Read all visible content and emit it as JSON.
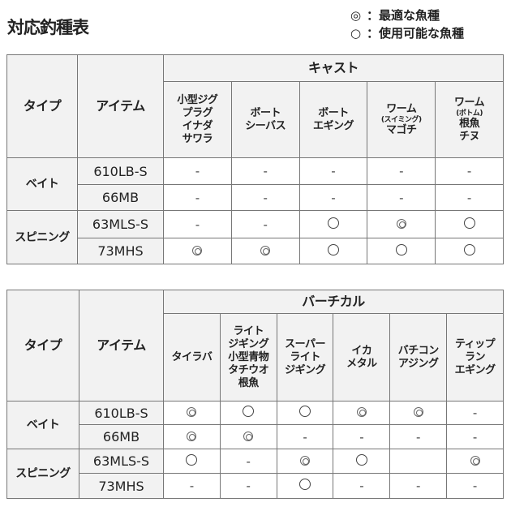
{
  "title": "対応釣種表",
  "legend": [
    {
      "symbol": "◎",
      "label": "：最適な魚種"
    },
    {
      "symbol": "○",
      "label": "：使用可能な魚種"
    }
  ],
  "tables": [
    {
      "type_header": "タイプ",
      "item_header": "アイテム",
      "group": "キャスト",
      "columns": [
        {
          "lines": [
            "小型ジグ",
            "プラグ",
            "イナダ",
            "サワラ"
          ]
        },
        {
          "lines": [
            "ボート",
            "シーバス"
          ]
        },
        {
          "lines": [
            "ボート",
            "エギング"
          ]
        },
        {
          "lines": [
            "ワーム"
          ],
          "small": "(スイミング)",
          "after": [
            "マゴチ"
          ]
        },
        {
          "lines": [
            "ワーム"
          ],
          "small": "(ボトム)",
          "after": [
            "根魚",
            "チヌ"
          ]
        }
      ],
      "rows": [
        {
          "type": "ベイト",
          "item": "610LB-S",
          "values": [
            "-",
            "-",
            "-",
            "-",
            "-"
          ]
        },
        {
          "type": "ベイト",
          "item": "66MB",
          "values": [
            "-",
            "-",
            "-",
            "-",
            "-"
          ]
        },
        {
          "type": "スピニング",
          "item": "63MLS-S",
          "values": [
            "-",
            "-",
            "○",
            "◎",
            "○"
          ]
        },
        {
          "type": "スピニング",
          "item": "73MHS",
          "values": [
            "◎",
            "◎",
            "○",
            "○",
            "○"
          ]
        }
      ]
    },
    {
      "type_header": "タイプ",
      "item_header": "アイテム",
      "group": "バーチカル",
      "columns": [
        {
          "lines": [
            "タイラバ"
          ]
        },
        {
          "lines": [
            "ライト",
            "ジギング",
            "小型青物",
            "タチウオ",
            "根魚"
          ]
        },
        {
          "lines": [
            "スーパー",
            "ライト",
            "ジギング"
          ]
        },
        {
          "lines": [
            "イカ",
            "メタル"
          ]
        },
        {
          "lines": [
            "バチコン",
            "アジング"
          ]
        },
        {
          "lines": [
            "ティップ",
            "ラン",
            "エギング"
          ]
        }
      ],
      "rows": [
        {
          "type": "ベイト",
          "item": "610LB-S",
          "values": [
            "◎",
            "○",
            "○",
            "◎",
            "◎",
            "-"
          ]
        },
        {
          "type": "ベイト",
          "item": "66MB",
          "values": [
            "◎",
            "◎",
            "-",
            "-",
            "-",
            "-"
          ]
        },
        {
          "type": "スピニング",
          "item": "63MLS-S",
          "values": [
            "○",
            "-",
            "◎",
            "○",
            "",
            "◎"
          ]
        },
        {
          "type": "スピニング",
          "item": "73MHS",
          "values": [
            "-",
            "-",
            "○",
            "-",
            "-",
            "-"
          ]
        }
      ]
    }
  ]
}
